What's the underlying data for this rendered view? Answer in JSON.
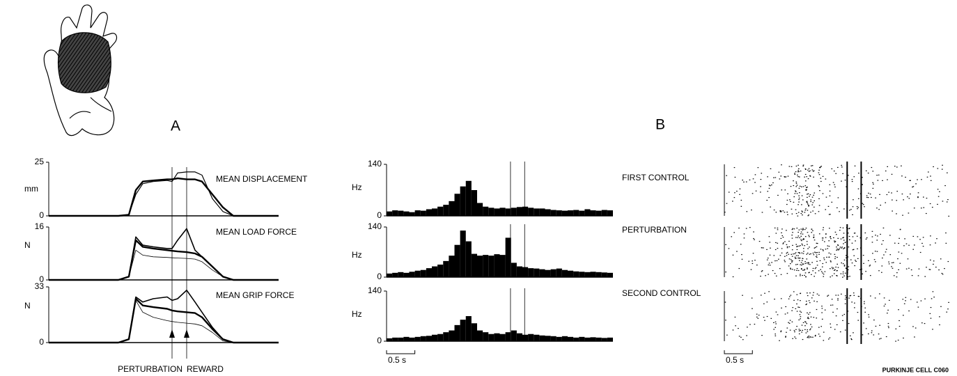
{
  "panel_labels": [
    "A",
    "B"
  ],
  "chart_data": [
    {
      "type": "line",
      "title": "MEAN DISPLACEMENT",
      "ylabel": "mm",
      "x": [
        0,
        1.0,
        1.15,
        1.25,
        1.35,
        1.5,
        1.7,
        1.77,
        1.85,
        1.98,
        2.1,
        2.2,
        2.35,
        2.5,
        2.65,
        3.3
      ],
      "xlim": [
        0,
        3.3
      ],
      "ylim": [
        0,
        25
      ],
      "yticks": [
        0,
        25
      ],
      "series": [
        {
          "color": "#000000",
          "width": 2.4,
          "values": [
            0,
            0,
            0.5,
            12,
            16,
            16.5,
            17,
            17,
            17.5,
            17,
            17,
            16,
            10,
            4,
            0,
            0
          ]
        },
        {
          "color": "#000000",
          "width": 1.2,
          "values": [
            0,
            0,
            0.5,
            10,
            15,
            16,
            16.5,
            16,
            20,
            20.5,
            20.5,
            19,
            8,
            2,
            0,
            0
          ]
        }
      ]
    },
    {
      "type": "line",
      "title": "MEAN LOAD FORCE",
      "ylabel": "N",
      "x": [
        0,
        1.0,
        1.15,
        1.25,
        1.35,
        1.5,
        1.7,
        1.77,
        1.85,
        1.98,
        2.1,
        2.2,
        2.35,
        2.5,
        2.65,
        3.3
      ],
      "xlim": [
        0,
        3.3
      ],
      "ylim": [
        0,
        16
      ],
      "yticks": [
        0,
        16
      ],
      "series": [
        {
          "color": "#000000",
          "width": 2.4,
          "values": [
            0,
            0,
            1,
            12,
            10,
            9.5,
            9,
            8.8,
            8.6,
            8.4,
            8,
            7,
            4,
            1,
            0,
            0
          ]
        },
        {
          "color": "#000000",
          "width": 1.6,
          "values": [
            0,
            0,
            1,
            13,
            10.5,
            10,
            9.5,
            9.5,
            12,
            15.5,
            9,
            7,
            4,
            1,
            0,
            0
          ]
        },
        {
          "color": "#000000",
          "width": 0.8,
          "values": [
            0,
            0,
            1,
            9,
            7.5,
            7,
            6.8,
            6.7,
            6.6,
            6.5,
            6.3,
            5.5,
            3,
            1,
            0,
            0
          ]
        }
      ]
    },
    {
      "type": "line",
      "title": "MEAN GRIP FORCE",
      "ylabel": "N",
      "x": [
        0,
        1.0,
        1.15,
        1.25,
        1.35,
        1.5,
        1.7,
        1.77,
        1.85,
        1.98,
        2.1,
        2.2,
        2.35,
        2.5,
        2.65,
        3.3
      ],
      "xlim": [
        0,
        3.3
      ],
      "ylim": [
        0,
        33
      ],
      "yticks": [
        0,
        33
      ],
      "series": [
        {
          "color": "#000000",
          "width": 2.4,
          "values": [
            0,
            0,
            2,
            26,
            22,
            21,
            20,
            19,
            18.5,
            18,
            17.5,
            15,
            8,
            2,
            0,
            0
          ]
        },
        {
          "color": "#000000",
          "width": 1.6,
          "values": [
            0,
            0,
            2,
            27,
            24,
            26,
            27,
            25,
            26,
            31,
            24,
            18,
            9,
            2,
            0,
            0
          ]
        },
        {
          "color": "#000000",
          "width": 0.8,
          "values": [
            0,
            0,
            2,
            25,
            18,
            15,
            13,
            12.5,
            12,
            11.5,
            11,
            10,
            6,
            1,
            0,
            0
          ]
        }
      ]
    },
    {
      "type": "histogram",
      "title": "FIRST CONTROL",
      "ylabel": "Hz",
      "color": "#000000",
      "bins": [
        0,
        0.1,
        0.2,
        0.3,
        0.4,
        0.5,
        0.6,
        0.7,
        0.8,
        0.9,
        1.0,
        1.1,
        1.2,
        1.3,
        1.4,
        1.5,
        1.6,
        1.7,
        1.8,
        1.9,
        2.0,
        2.1,
        2.2,
        2.3,
        2.4,
        2.5,
        2.6,
        2.7,
        2.8,
        2.9,
        3.0,
        3.1,
        3.2,
        3.3,
        3.4,
        3.5,
        3.6,
        3.7,
        3.8,
        3.9,
        4.0
      ],
      "values": [
        12,
        15,
        14,
        12,
        10,
        15,
        14,
        18,
        20,
        25,
        30,
        40,
        60,
        80,
        95,
        70,
        35,
        25,
        22,
        20,
        22,
        20,
        22,
        24,
        25,
        22,
        20,
        20,
        18,
        16,
        15,
        14,
        15,
        16,
        14,
        18,
        15,
        14,
        16,
        15
      ],
      "xlim": [
        0,
        4.0
      ],
      "ylim": [
        0,
        140
      ],
      "yticks": [
        0,
        140
      ],
      "event_lines": [
        2.19,
        2.44
      ]
    },
    {
      "type": "histogram",
      "title": "PERTURBATION",
      "ylabel": "Hz",
      "color": "#000000",
      "bins": [
        0,
        0.1,
        0.2,
        0.3,
        0.4,
        0.5,
        0.6,
        0.7,
        0.8,
        0.9,
        1.0,
        1.1,
        1.2,
        1.3,
        1.4,
        1.5,
        1.6,
        1.7,
        1.8,
        1.9,
        2.0,
        2.1,
        2.2,
        2.3,
        2.4,
        2.5,
        2.6,
        2.7,
        2.8,
        2.9,
        3.0,
        3.1,
        3.2,
        3.3,
        3.4,
        3.5,
        3.6,
        3.7,
        3.8,
        3.9,
        4.0
      ],
      "values": [
        10,
        12,
        14,
        12,
        15,
        18,
        20,
        25,
        30,
        35,
        45,
        60,
        90,
        130,
        100,
        65,
        60,
        62,
        60,
        64,
        62,
        110,
        40,
        30,
        28,
        25,
        24,
        22,
        20,
        22,
        24,
        20,
        18,
        16,
        15,
        14,
        15,
        14,
        13,
        12
      ],
      "xlim": [
        0,
        4.0
      ],
      "ylim": [
        0,
        140
      ],
      "yticks": [
        0,
        140
      ],
      "event_lines": [
        2.19,
        2.44
      ]
    },
    {
      "type": "histogram",
      "title": "SECOND CONTROL",
      "ylabel": "Hz",
      "color": "#000000",
      "bins": [
        0,
        0.1,
        0.2,
        0.3,
        0.4,
        0.5,
        0.6,
        0.7,
        0.8,
        0.9,
        1.0,
        1.1,
        1.2,
        1.3,
        1.4,
        1.5,
        1.6,
        1.7,
        1.8,
        1.9,
        2.0,
        2.1,
        2.2,
        2.3,
        2.4,
        2.5,
        2.6,
        2.7,
        2.8,
        2.9,
        3.0,
        3.1,
        3.2,
        3.3,
        3.4,
        3.5,
        3.6,
        3.7,
        3.8,
        3.9,
        4.0
      ],
      "values": [
        8,
        10,
        10,
        12,
        10,
        12,
        14,
        15,
        18,
        20,
        25,
        30,
        45,
        60,
        70,
        50,
        30,
        25,
        20,
        22,
        20,
        25,
        30,
        22,
        18,
        20,
        18,
        16,
        15,
        14,
        12,
        14,
        12,
        10,
        12,
        10,
        11,
        10,
        9,
        10
      ],
      "xlim": [
        0,
        4.0
      ],
      "ylim": [
        0,
        140
      ],
      "yticks": [
        0,
        140
      ],
      "event_lines": [
        2.19,
        2.44
      ]
    }
  ],
  "annotations": {
    "events": [
      {
        "x": 1.77,
        "label": "PERTURBATION"
      },
      {
        "x": 1.98,
        "label": "REWARD"
      }
    ]
  },
  "scale_bar": {
    "value": 0.5,
    "label": "0.5 s"
  },
  "footer": "PURKINJE CELL C060"
}
